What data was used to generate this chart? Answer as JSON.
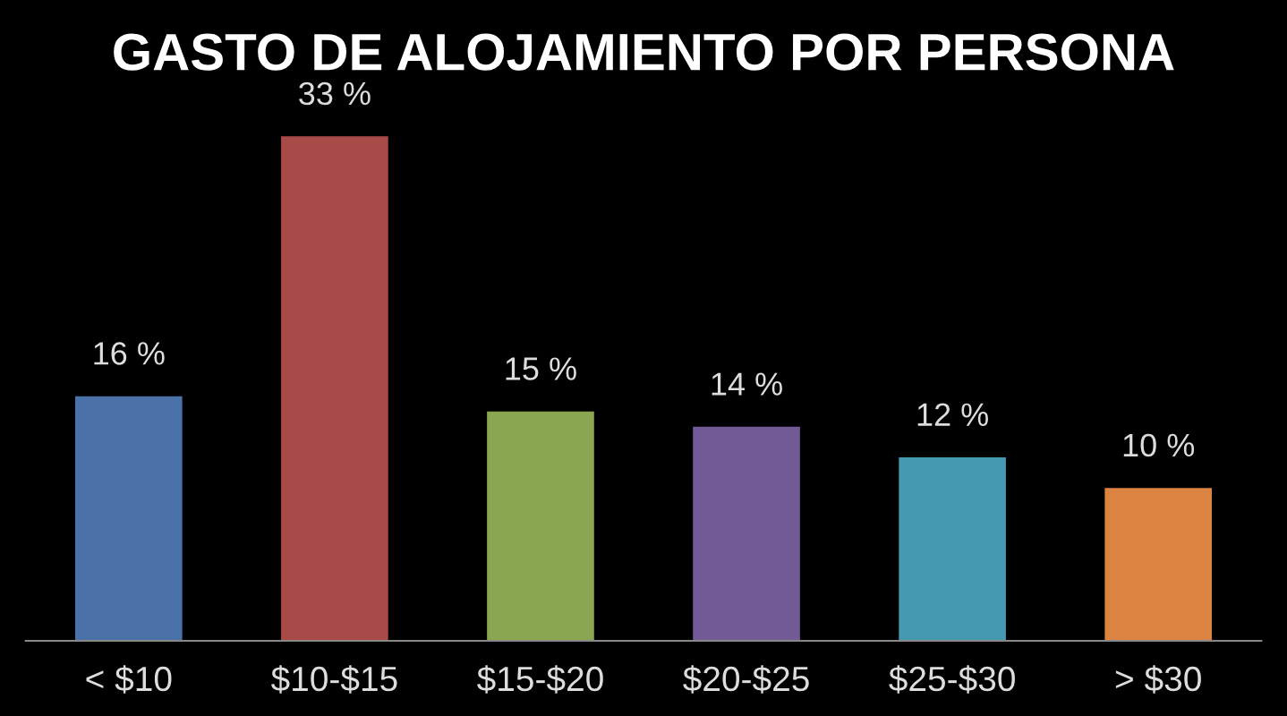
{
  "chart_data": {
    "type": "bar",
    "title": "GASTO DE ALOJAMIENTO POR PERSONA",
    "categories": [
      "< $10",
      "$10-$15",
      "$15-$20",
      "$20-$25",
      "$25-$30",
      "> $30"
    ],
    "values": [
      16,
      33,
      15,
      14,
      12,
      10
    ],
    "colors": [
      "#4a72a8",
      "#a84a48",
      "#8aa650",
      "#725a96",
      "#4498b0",
      "#dc8442"
    ],
    "value_labels": [
      "16 %",
      "33 %",
      "15 %",
      "14 %",
      "12 %",
      "10 %"
    ],
    "grid": false,
    "legend": false
  }
}
